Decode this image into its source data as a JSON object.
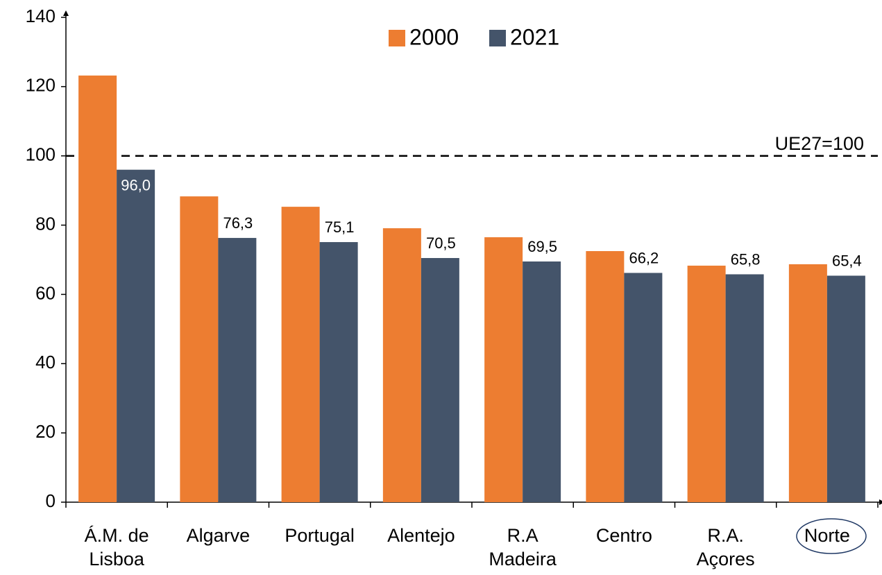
{
  "chart_data": {
    "type": "bar",
    "categories": [
      "Á.M. de\nLisboa",
      "Algarve",
      "Portugal",
      "Alentejo",
      "R.A\nMadeira",
      "Centro",
      "R.A.\nAçores",
      "Norte"
    ],
    "series": [
      {
        "name": "2000",
        "color": "#ED7D31",
        "values": [
          123.2,
          88.3,
          85.3,
          79.1,
          76.5,
          72.5,
          68.3,
          68.7
        ]
      },
      {
        "name": "2021",
        "color": "#44546A",
        "values": [
          96.0,
          76.3,
          75.1,
          70.5,
          69.5,
          66.2,
          65.8,
          65.4
        ],
        "value_labels": [
          "96,0",
          "76,3",
          "75,1",
          "70,5",
          "69,5",
          "66,2",
          "65,8",
          "65,4"
        ]
      }
    ],
    "ylim": [
      0,
      140
    ],
    "yticks": [
      0,
      20,
      40,
      60,
      80,
      100,
      120,
      140
    ],
    "reference_line": {
      "value": 100,
      "label": "UE27=100"
    },
    "legend": "top"
  }
}
